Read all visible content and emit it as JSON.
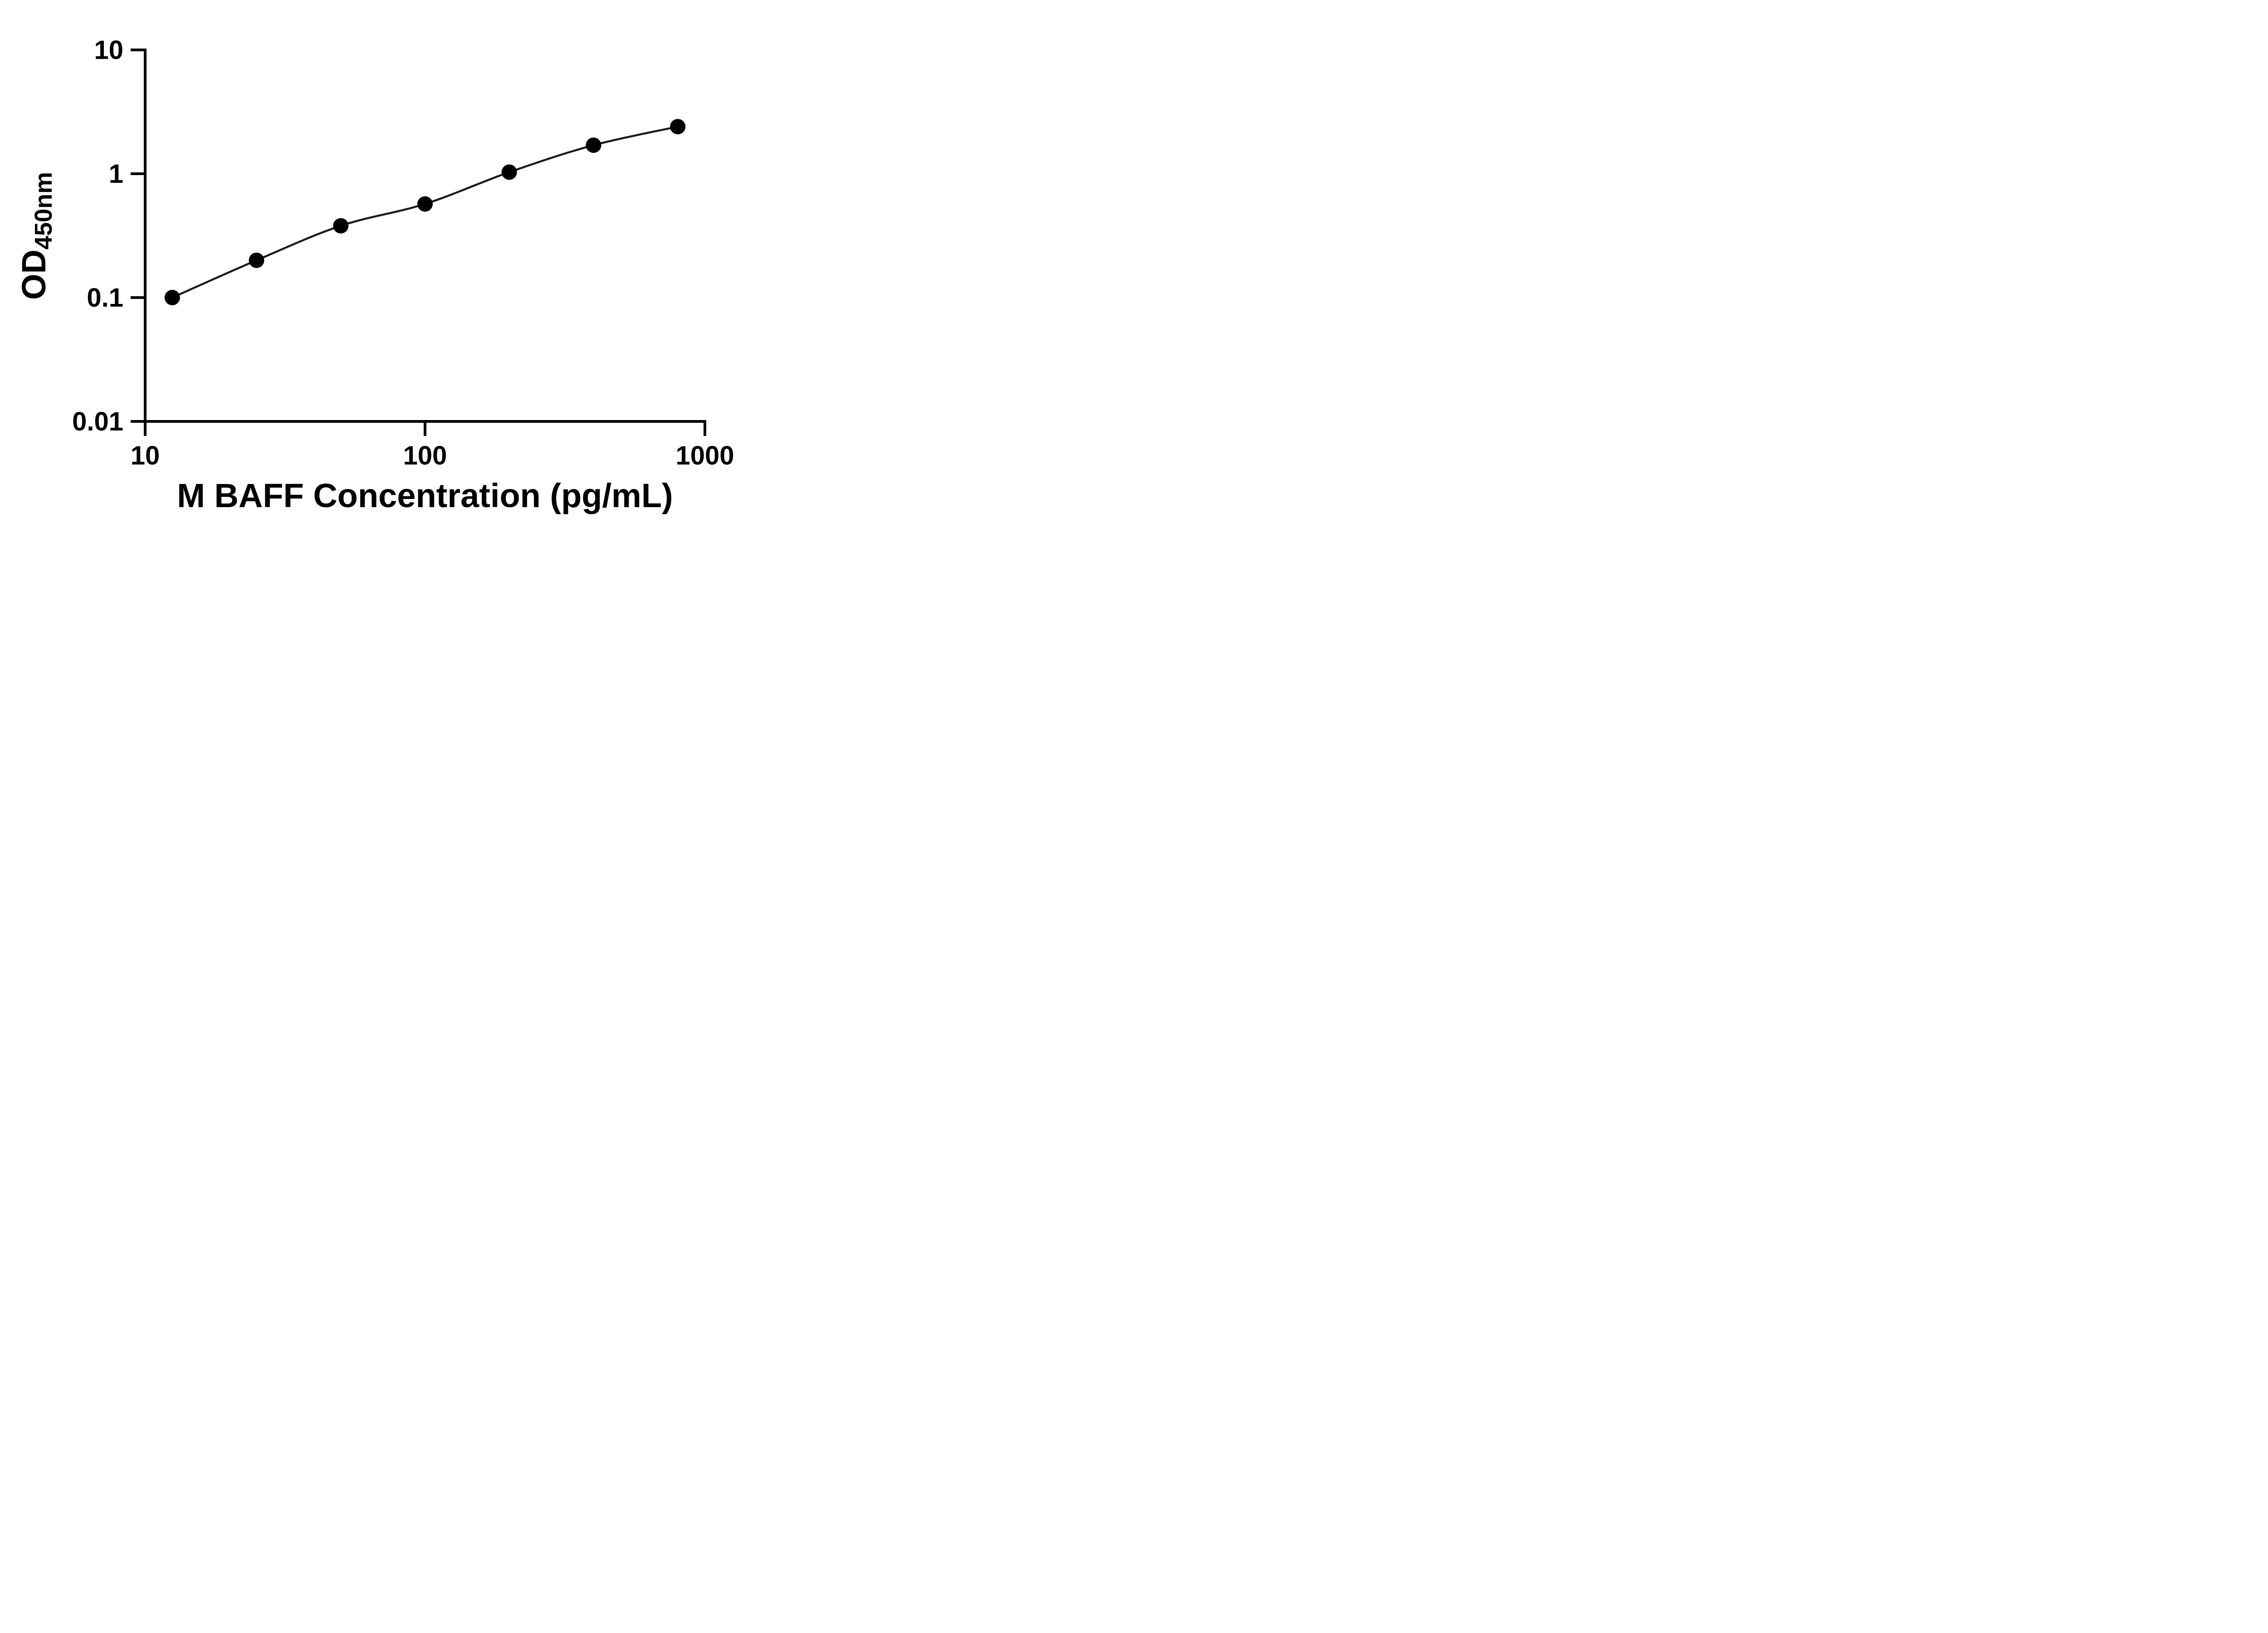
{
  "chart_data": {
    "type": "scatter",
    "xlabel": "M BAFF Concentration (pg/mL)",
    "ylabel": "OD",
    "ylabel_subscript": "450nm",
    "x_scale": "log",
    "y_scale": "log",
    "xlim": [
      10,
      1000
    ],
    "ylim": [
      0.01,
      10
    ],
    "x_ticks": [
      10,
      100,
      1000
    ],
    "x_tick_labels": [
      "10",
      "100",
      "1000"
    ],
    "y_ticks": [
      0.01,
      0.1,
      1,
      10
    ],
    "y_tick_labels": [
      "0.01",
      "0.1",
      "1",
      "10"
    ],
    "grid": false,
    "legend": "none",
    "marker_color": "#000000",
    "line_color": "#1a1a1a",
    "points": [
      {
        "x": 12.5,
        "y": 0.1
      },
      {
        "x": 25,
        "y": 0.2
      },
      {
        "x": 50,
        "y": 0.38
      },
      {
        "x": 100,
        "y": 0.57
      },
      {
        "x": 200,
        "y": 1.03
      },
      {
        "x": 400,
        "y": 1.7
      },
      {
        "x": 800,
        "y": 2.4
      }
    ]
  }
}
